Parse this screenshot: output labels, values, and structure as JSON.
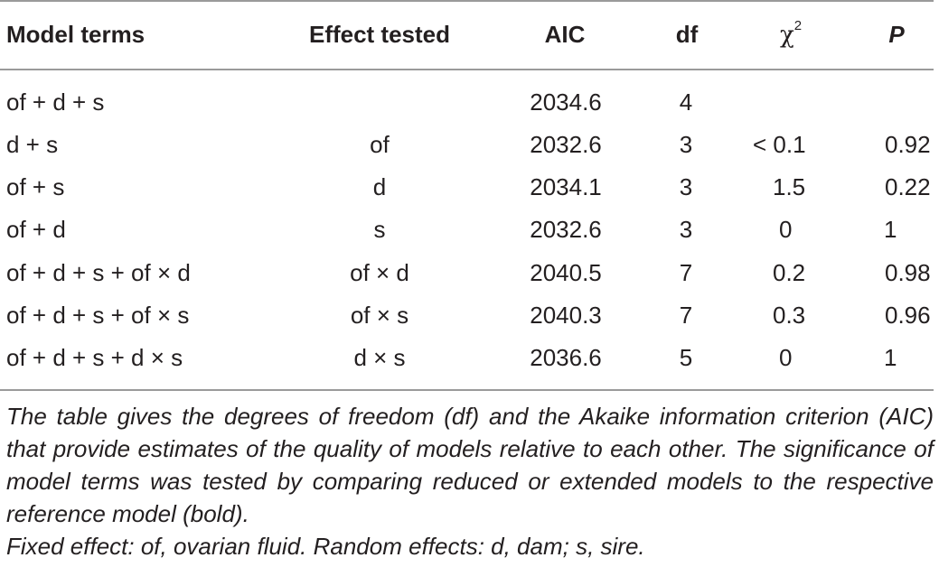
{
  "headers": {
    "terms": "Model terms",
    "effect": "Effect tested",
    "aic": "AIC",
    "df": "df",
    "chi": "χ",
    "chi_sup": "2",
    "p": "P"
  },
  "rows": [
    {
      "terms": "of + d + s",
      "effect": "",
      "aic": "2034.6",
      "df": "4",
      "chi": "",
      "p": ""
    },
    {
      "terms": "d + s",
      "effect": "of",
      "aic": "2032.6",
      "df": "3",
      "chi": "< 0.1",
      "p": "0.92"
    },
    {
      "terms": "of + s",
      "effect": "d",
      "aic": "2034.1",
      "df": "3",
      "chi": "1.5",
      "p": "0.22"
    },
    {
      "terms": "of + d",
      "effect": "s",
      "aic": "2032.6",
      "df": "3",
      "chi": "0",
      "p": "1"
    },
    {
      "terms": "of + d + s + of × d",
      "effect": "of × d",
      "aic": "2040.5",
      "df": "7",
      "chi": "0.2",
      "p": "0.98"
    },
    {
      "terms": "of + d + s + of × s",
      "effect": "of × s",
      "aic": "2040.3",
      "df": "7",
      "chi": "0.3",
      "p": "0.96"
    },
    {
      "terms": "of + d + s + d × s",
      "effect": "d × s",
      "aic": "2036.6",
      "df": "5",
      "chi": "0",
      "p": "1"
    }
  ],
  "notes": {
    "description": "The table gives the degrees of freedom (df) and the Akaike information criterion (AIC) that provide estimates of the quality of models relative to each other. The significance of model terms was tested by comparing reduced or extended models to the respective reference model (bold).",
    "effects": "Fixed effect: of, ovarian fluid. Random effects: d, dam; s, sire."
  }
}
